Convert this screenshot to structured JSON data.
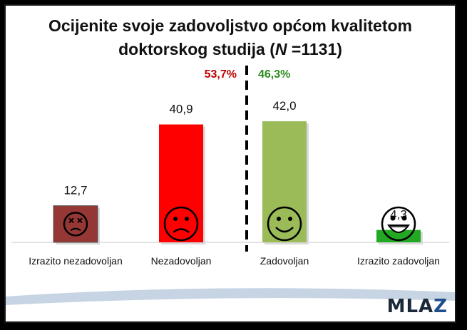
{
  "chart_data": {
    "type": "bar",
    "title_main": "Ocijenite svoje zadovoljstvo općom kvalitetom",
    "title_line2_before": "doktorskog studija (",
    "title_italic": "N",
    "title_line2_after": " =1131)",
    "categories": [
      "Izrazito nezadovoljan",
      "Nezadovoljan",
      "Zadovoljan",
      "Izrazito zadovoljan"
    ],
    "values": [
      12.7,
      40.9,
      42.0,
      4.3
    ],
    "value_labels": [
      "12,7",
      "40,9",
      "42,0",
      "4,3"
    ],
    "bar_colors": [
      "#953735",
      "#ff0000",
      "#9bbb59",
      "#22a822"
    ],
    "faces": [
      "dead",
      "sad",
      "happy",
      "laughing"
    ],
    "ylim": [
      0,
      45
    ],
    "groups": [
      {
        "label": "53,7%",
        "color": "#c00000"
      },
      {
        "label": "46,3%",
        "color": "#2e8b20"
      }
    ],
    "divider": "dashed",
    "grid": false,
    "legend": "none"
  },
  "logo": {
    "text_a": "MLA",
    "text_b": "Z"
  }
}
